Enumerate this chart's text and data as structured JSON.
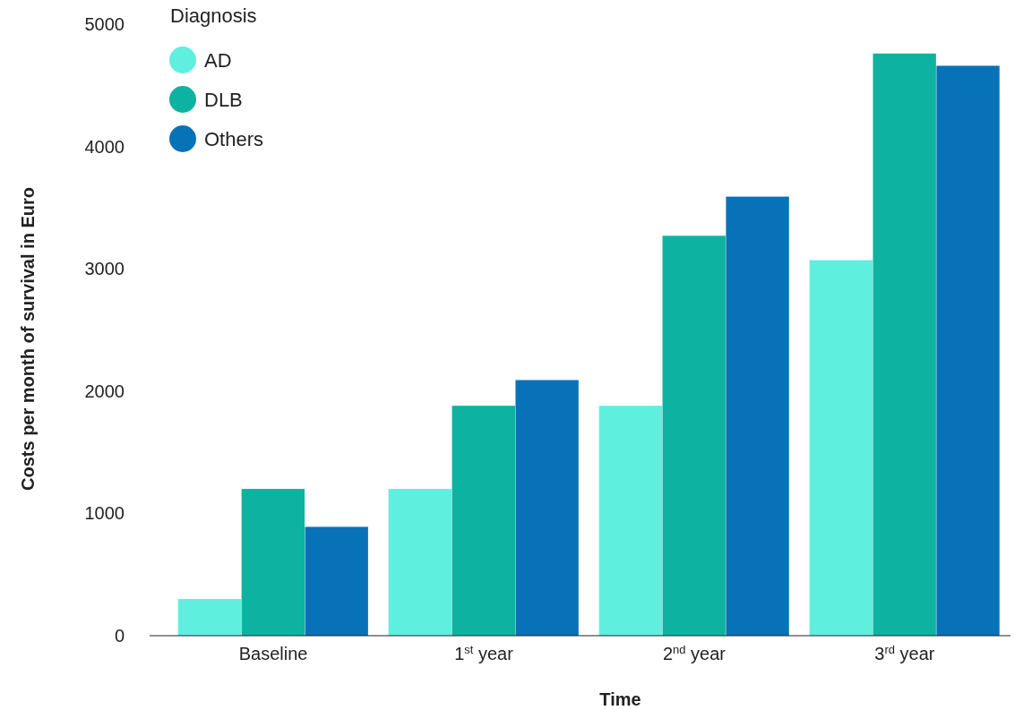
{
  "chart_data": {
    "type": "bar",
    "xlabel": "Time",
    "ylabel": "Costs per month of survival in Euro",
    "legend_title": "Diagnosis",
    "legend": "top left",
    "grid": false,
    "categories": [
      "Baseline",
      "1$^{st}$ year",
      "2$^{nd}$ year",
      "3$^{rd}$ year"
    ],
    "ylim": [
      0,
      5000
    ],
    "yticks": [
      0,
      1000,
      2000,
      3000,
      4000,
      5000
    ],
    "series": [
      {
        "name": "AD",
        "color": "#5eefdf",
        "values": [
          300,
          1200,
          1880,
          3070
        ]
      },
      {
        "name": "DLB",
        "color": "#0db3a0",
        "values": [
          1200,
          1880,
          3270,
          4760
        ]
      },
      {
        "name": "Others",
        "color": "#0872b9",
        "values": [
          890,
          2090,
          3590,
          4660
        ]
      }
    ]
  }
}
